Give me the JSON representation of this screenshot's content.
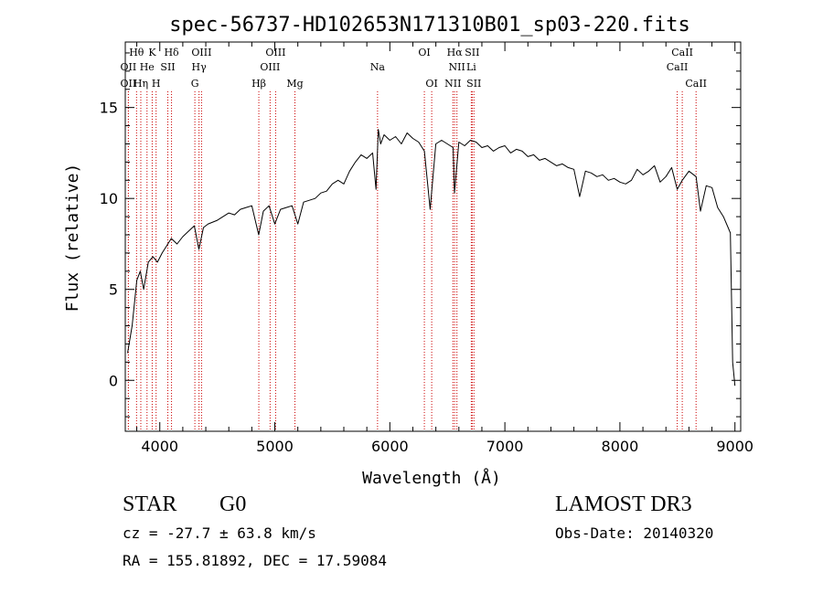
{
  "chart_data": {
    "type": "line",
    "title": "spec-56737-HD102653N171310B01_sp03-220.fits",
    "xlabel": "Wavelength (Å)",
    "ylabel": "Flux (relative)",
    "xlim": [
      3700,
      9050
    ],
    "ylim": [
      -2.8,
      18.6
    ],
    "xticks": [
      4000,
      5000,
      6000,
      7000,
      8000,
      9000
    ],
    "yticks": [
      0,
      5,
      10,
      15
    ],
    "grid": false,
    "series": [
      {
        "x": [
          3720,
          3760,
          3800,
          3830,
          3860,
          3900,
          3940,
          3980,
          4020,
          4060,
          4100,
          4150,
          4200,
          4250,
          4300,
          4340,
          4380,
          4420,
          4460,
          4500,
          4550,
          4600,
          4650,
          4700,
          4750,
          4800,
          4860,
          4900,
          4950,
          5000,
          5050,
          5100,
          5150,
          5200,
          5250,
          5300,
          5350,
          5400,
          5450,
          5500,
          5550,
          5600,
          5650,
          5700,
          5750,
          5800,
          5850,
          5880,
          5900,
          5920,
          5950,
          6000,
          6050,
          6100,
          6150,
          6200,
          6250,
          6300,
          6350,
          6400,
          6450,
          6500,
          6550,
          6562,
          6600,
          6650,
          6700,
          6750,
          6800,
          6850,
          6900,
          6950,
          7000,
          7050,
          7100,
          7150,
          7200,
          7250,
          7300,
          7350,
          7400,
          7450,
          7500,
          7550,
          7600,
          7650,
          7700,
          7750,
          7800,
          7850,
          7900,
          7950,
          8000,
          8050,
          8100,
          8150,
          8200,
          8250,
          8300,
          8350,
          8400,
          8450,
          8498,
          8542,
          8600,
          8662,
          8700,
          8750,
          8800,
          8850,
          8900,
          8940,
          8960,
          8980,
          9000
        ],
        "y": [
          1.5,
          3.0,
          5.5,
          6.0,
          5.0,
          6.5,
          6.8,
          6.5,
          7.0,
          7.4,
          7.8,
          7.5,
          7.9,
          8.2,
          8.5,
          7.2,
          8.4,
          8.6,
          8.7,
          8.8,
          9.0,
          9.2,
          9.1,
          9.4,
          9.5,
          9.6,
          8.0,
          9.3,
          9.6,
          8.6,
          9.4,
          9.5,
          9.6,
          8.6,
          9.8,
          9.9,
          10.0,
          10.3,
          10.4,
          10.8,
          11.0,
          10.8,
          11.5,
          12.0,
          12.4,
          12.2,
          12.5,
          10.5,
          13.8,
          13.0,
          13.5,
          13.2,
          13.4,
          13.0,
          13.6,
          13.3,
          13.1,
          12.6,
          9.4,
          13.0,
          13.2,
          13.0,
          12.8,
          10.3,
          13.1,
          12.9,
          13.2,
          13.1,
          12.8,
          12.9,
          12.6,
          12.8,
          12.9,
          12.5,
          12.7,
          12.6,
          12.3,
          12.4,
          12.1,
          12.2,
          12.0,
          11.8,
          11.9,
          11.7,
          11.6,
          10.1,
          11.5,
          11.4,
          11.2,
          11.3,
          11.0,
          11.1,
          10.9,
          10.8,
          11.0,
          11.6,
          11.3,
          11.5,
          11.8,
          10.9,
          11.2,
          11.7,
          10.5,
          11.0,
          11.5,
          11.2,
          9.3,
          10.7,
          10.6,
          9.5,
          9.0,
          8.4,
          8.1,
          1.0,
          -0.3
        ]
      }
    ],
    "line_markers": [
      {
        "label": "Hθ",
        "x": 3798,
        "row": 1
      },
      {
        "label": "OII",
        "x": 3727,
        "row": 2
      },
      {
        "label": "OII",
        "x": 3727,
        "row": 3
      },
      {
        "label": "He",
        "x": 3889,
        "row": 2
      },
      {
        "label": "Hη",
        "x": 3835,
        "row": 3
      },
      {
        "label": "K",
        "x": 3934,
        "row": 1
      },
      {
        "label": "Hδ",
        "x": 4102,
        "row": 1
      },
      {
        "label": "SII",
        "x": 4070,
        "row": 2
      },
      {
        "label": "H",
        "x": 3968,
        "row": 3
      },
      {
        "label": "OIII",
        "x": 4363,
        "row": 1
      },
      {
        "label": "Hγ",
        "x": 4341,
        "row": 2
      },
      {
        "label": "G",
        "x": 4305,
        "row": 3
      },
      {
        "label": "OIII",
        "x": 5007,
        "row": 1
      },
      {
        "label": "OIII",
        "x": 4959,
        "row": 2
      },
      {
        "label": "Hβ",
        "x": 4861,
        "row": 3
      },
      {
        "label": "Mg",
        "x": 5175,
        "row": 3
      },
      {
        "label": "Na",
        "x": 5893,
        "row": 2
      },
      {
        "label": "OI",
        "x": 6300,
        "row": 1
      },
      {
        "label": "OI",
        "x": 6364,
        "row": 3
      },
      {
        "label": "Hα",
        "x": 6563,
        "row": 1
      },
      {
        "label": "SII",
        "x": 6716,
        "row": 1
      },
      {
        "label": "NII",
        "x": 6583,
        "row": 2
      },
      {
        "label": "Li",
        "x": 6708,
        "row": 2
      },
      {
        "label": "NII",
        "x": 6548,
        "row": 3
      },
      {
        "label": "SII",
        "x": 6731,
        "row": 3
      },
      {
        "label": "CaII",
        "x": 8542,
        "row": 1
      },
      {
        "label": "CaII",
        "x": 8498,
        "row": 2
      },
      {
        "label": "CaII",
        "x": 8662,
        "row": 3
      }
    ],
    "line_color": "#000000",
    "marker_color": "#cc0000"
  },
  "info": {
    "object_class": "STAR",
    "subclass": "G0",
    "survey": "LAMOST DR3",
    "cz": "cz = -27.7 ± 63.8 km/s",
    "obs_date": "Obs-Date: 20140320",
    "coords": "RA = 155.81892, DEC =  17.59084"
  }
}
